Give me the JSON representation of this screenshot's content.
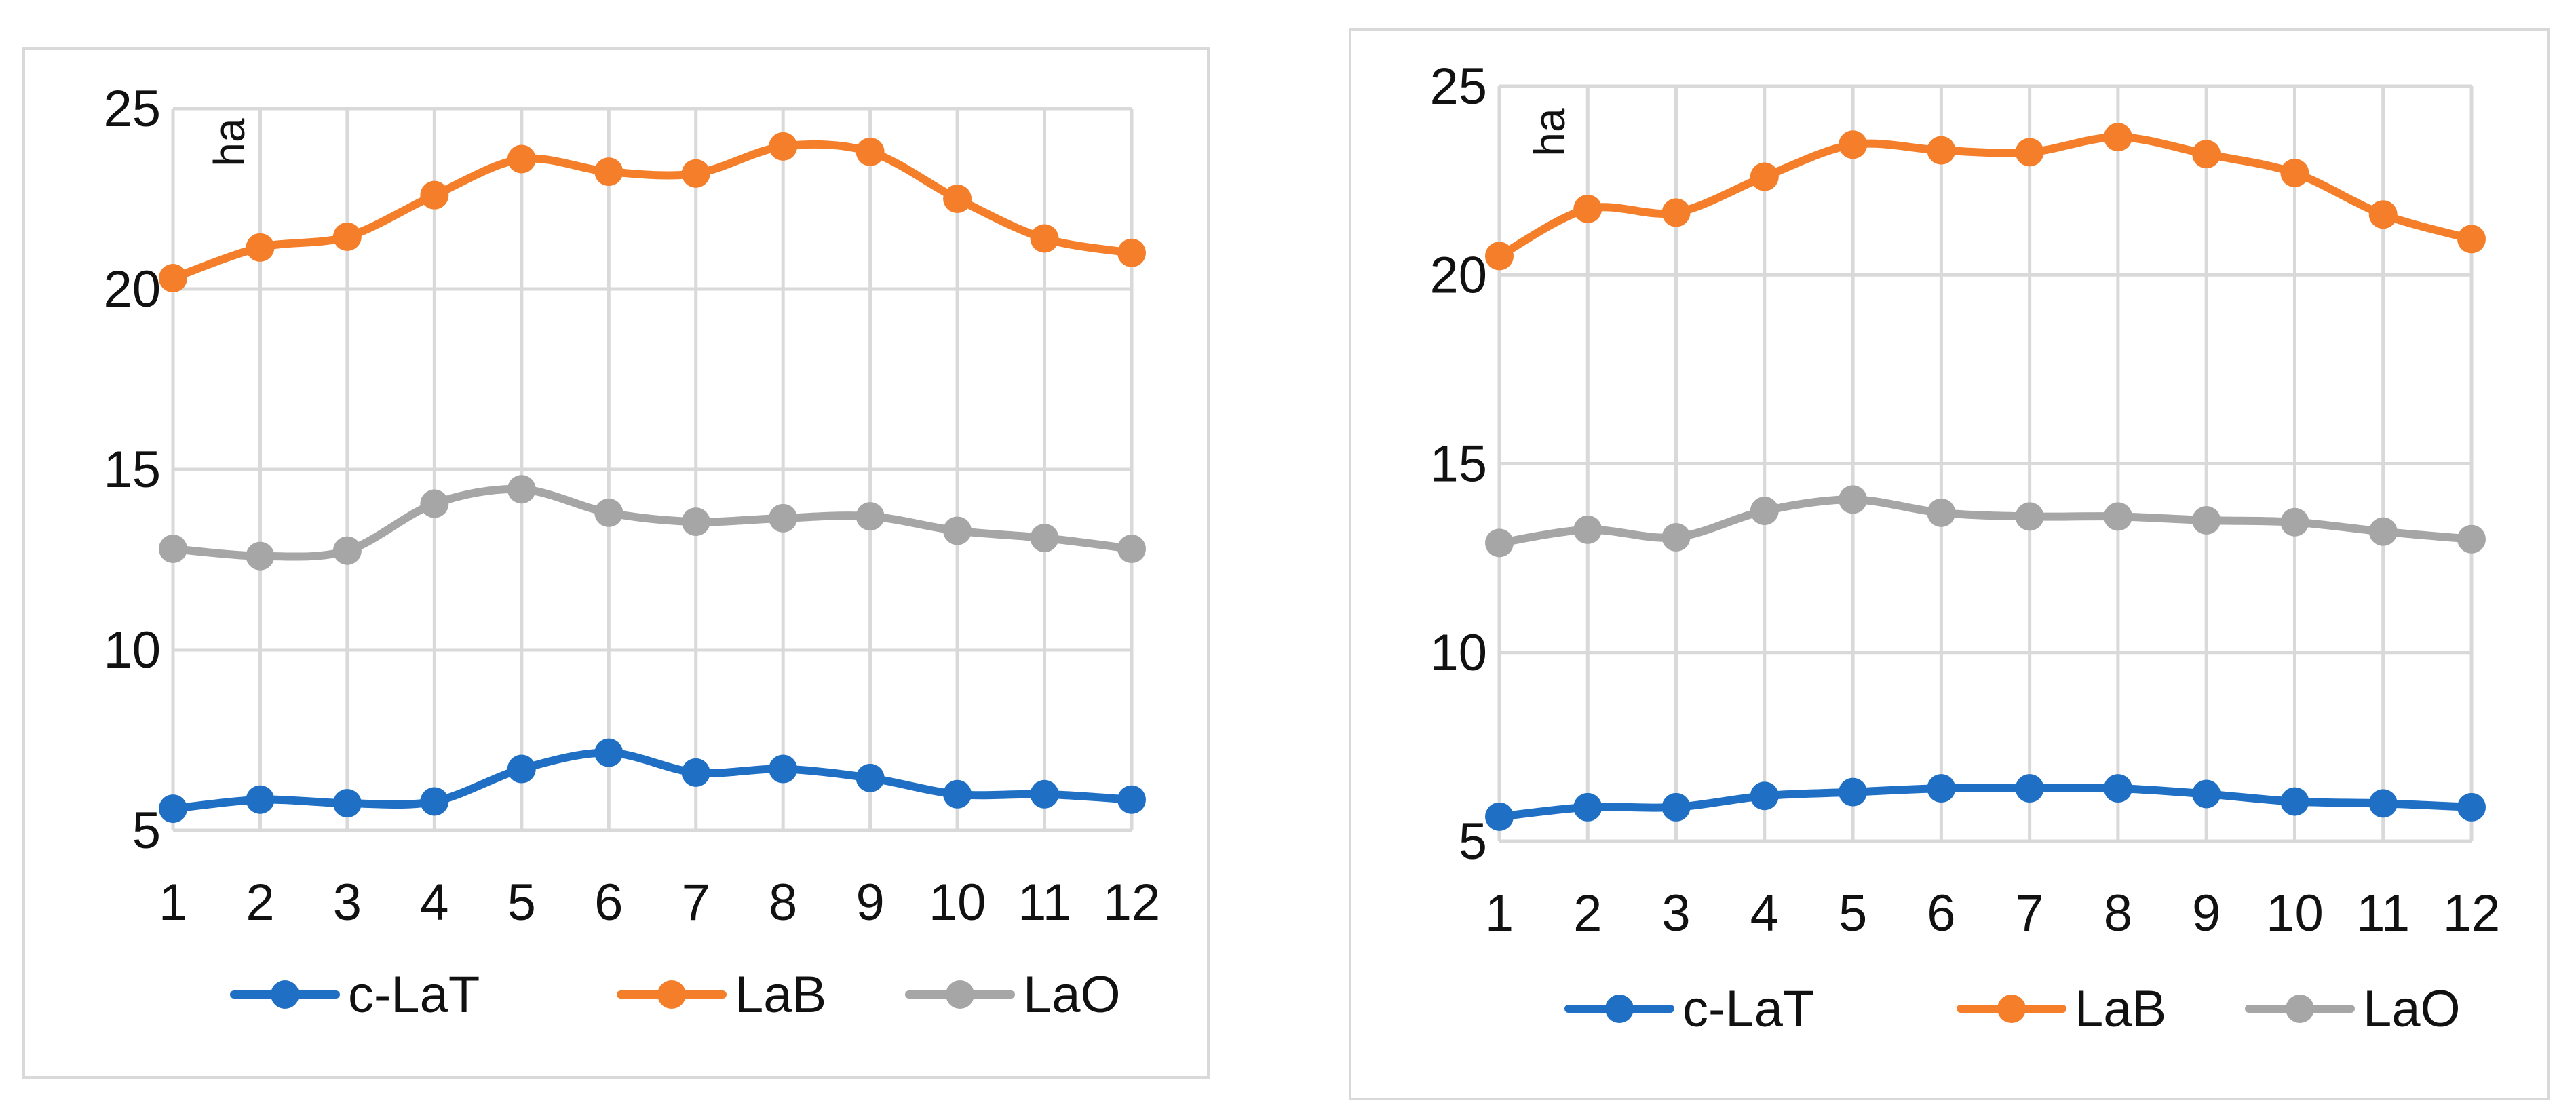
{
  "chart_data": [
    {
      "type": "line",
      "title": "",
      "xlabel": "",
      "ylabel": "ha",
      "x": [
        1,
        2,
        3,
        4,
        5,
        6,
        7,
        8,
        9,
        10,
        11,
        12
      ],
      "x_tick_labels": [
        "1",
        "2",
        "3",
        "4",
        "5",
        "6",
        "7",
        "8",
        "9",
        "10",
        "11",
        "12"
      ],
      "y_ticks": [
        5,
        10,
        15,
        20,
        25
      ],
      "y_tick_labels": [
        "5",
        "10",
        "15",
        "20",
        "25"
      ],
      "ylim": [
        5,
        25
      ],
      "grid": true,
      "legend_position": "bottom",
      "series": [
        {
          "name": "c-LaT",
          "color": "#1f6fc5",
          "values": [
            5.6,
            5.85,
            5.75,
            5.8,
            6.7,
            7.15,
            6.6,
            6.7,
            6.45,
            6.0,
            6.0,
            5.85
          ]
        },
        {
          "name": "LaB",
          "color": "#f47e2a",
          "values": [
            20.3,
            21.15,
            21.45,
            22.6,
            23.6,
            23.25,
            23.2,
            23.95,
            23.8,
            22.5,
            21.4,
            21.0
          ]
        },
        {
          "name": "LaO",
          "color": "#a6a6a6",
          "values": [
            12.8,
            12.6,
            12.75,
            14.05,
            14.45,
            13.8,
            13.55,
            13.65,
            13.7,
            13.3,
            13.1,
            12.8
          ]
        }
      ]
    },
    {
      "type": "line",
      "title": "",
      "xlabel": "",
      "ylabel": "ha",
      "x": [
        1,
        2,
        3,
        4,
        5,
        6,
        7,
        8,
        9,
        10,
        11,
        12
      ],
      "x_tick_labels": [
        "1",
        "2",
        "3",
        "4",
        "5",
        "6",
        "7",
        "8",
        "9",
        "10",
        "11",
        "12"
      ],
      "y_ticks": [
        5,
        10,
        15,
        20,
        25
      ],
      "y_tick_labels": [
        "5",
        "10",
        "15",
        "20",
        "25"
      ],
      "ylim": [
        5,
        25
      ],
      "grid": true,
      "legend_position": "bottom",
      "series": [
        {
          "name": "c-LaT",
          "color": "#1f6fc5",
          "values": [
            5.65,
            5.9,
            5.9,
            6.2,
            6.3,
            6.4,
            6.4,
            6.4,
            6.25,
            6.05,
            6.0,
            5.9
          ]
        },
        {
          "name": "LaB",
          "color": "#f47e2a",
          "values": [
            20.5,
            21.75,
            21.65,
            22.6,
            23.45,
            23.3,
            23.25,
            23.65,
            23.2,
            22.7,
            21.6,
            20.95
          ]
        },
        {
          "name": "LaO",
          "color": "#a6a6a6",
          "values": [
            12.9,
            13.25,
            13.05,
            13.75,
            14.05,
            13.7,
            13.6,
            13.6,
            13.5,
            13.45,
            13.2,
            13.0
          ]
        }
      ]
    }
  ]
}
